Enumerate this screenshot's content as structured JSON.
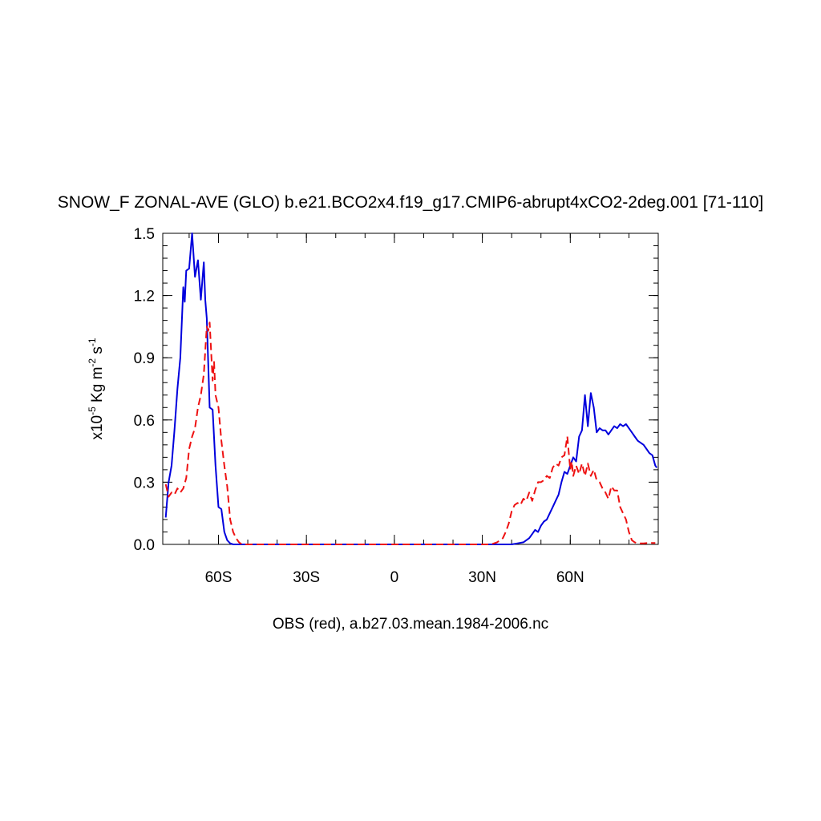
{
  "chart_data": {
    "type": "line",
    "title": "SNOW_F ZONAL-AVE (GLO) b.e21.BCO2x4.f19_g17.CMIP6-abrupt4xCO2-2deg.001 [71-110]",
    "xlabel": "OBS (red), a.b27.03.mean.1984-2006.nc",
    "ylabel": {
      "prefix": "x10",
      "exp1": "-5",
      "mid": " Kg m",
      "exp2": "-2",
      "mid2": " s",
      "exp3": "-1"
    },
    "xlim": [
      -79,
      90
    ],
    "ylim": [
      0,
      1.5
    ],
    "x_ticks": [
      {
        "value": -60,
        "label": "60S"
      },
      {
        "value": -30,
        "label": "30S"
      },
      {
        "value": 0,
        "label": "0"
      },
      {
        "value": 30,
        "label": "30N"
      },
      {
        "value": 60,
        "label": "60N"
      }
    ],
    "y_ticks": [
      {
        "value": 0.0,
        "label": "0.0"
      },
      {
        "value": 0.3,
        "label": "0.3"
      },
      {
        "value": 0.6,
        "label": "0.6"
      },
      {
        "value": 0.9,
        "label": "0.9"
      },
      {
        "value": 1.2,
        "label": "1.2"
      },
      {
        "value": 1.5,
        "label": "1.5"
      }
    ],
    "grid": false,
    "series": [
      {
        "color": "#0000dd",
        "dash": "none",
        "points": [
          [
            -78,
            0.13
          ],
          [
            -77,
            0.3
          ],
          [
            -76,
            0.38
          ],
          [
            -75,
            0.55
          ],
          [
            -74,
            0.75
          ],
          [
            -73,
            0.9
          ],
          [
            -72,
            1.24
          ],
          [
            -71.5,
            1.17
          ],
          [
            -71,
            1.32
          ],
          [
            -70,
            1.33
          ],
          [
            -69,
            1.5
          ],
          [
            -68,
            1.29
          ],
          [
            -67,
            1.37
          ],
          [
            -66,
            1.18
          ],
          [
            -65,
            1.36
          ],
          [
            -64.5,
            1.18
          ],
          [
            -64,
            1.09
          ],
          [
            -63,
            0.66
          ],
          [
            -62,
            0.65
          ],
          [
            -61,
            0.38
          ],
          [
            -60,
            0.18
          ],
          [
            -59,
            0.17
          ],
          [
            -58,
            0.06
          ],
          [
            -57,
            0.02
          ],
          [
            -56,
            0.005
          ],
          [
            -55,
            0.0
          ],
          [
            -20,
            0.0
          ],
          [
            0,
            0.0
          ],
          [
            30,
            0.0
          ],
          [
            40,
            0.0
          ],
          [
            42,
            0.005
          ],
          [
            44,
            0.01
          ],
          [
            46,
            0.03
          ],
          [
            47,
            0.05
          ],
          [
            48,
            0.07
          ],
          [
            49,
            0.06
          ],
          [
            50,
            0.09
          ],
          [
            51,
            0.11
          ],
          [
            52,
            0.12
          ],
          [
            53,
            0.15
          ],
          [
            54,
            0.18
          ],
          [
            55,
            0.21
          ],
          [
            56,
            0.24
          ],
          [
            57,
            0.3
          ],
          [
            58,
            0.35
          ],
          [
            59,
            0.34
          ],
          [
            60,
            0.38
          ],
          [
            61,
            0.42
          ],
          [
            62,
            0.4
          ],
          [
            63,
            0.52
          ],
          [
            64,
            0.55
          ],
          [
            65,
            0.72
          ],
          [
            66,
            0.57
          ],
          [
            67,
            0.73
          ],
          [
            68,
            0.66
          ],
          [
            69,
            0.54
          ],
          [
            70,
            0.56
          ],
          [
            71,
            0.55
          ],
          [
            72,
            0.55
          ],
          [
            73,
            0.53
          ],
          [
            74,
            0.55
          ],
          [
            75,
            0.57
          ],
          [
            76,
            0.56
          ],
          [
            77,
            0.58
          ],
          [
            78,
            0.57
          ],
          [
            79,
            0.58
          ],
          [
            80,
            0.56
          ],
          [
            81,
            0.54
          ],
          [
            82,
            0.52
          ],
          [
            83,
            0.5
          ],
          [
            84,
            0.49
          ],
          [
            85,
            0.48
          ],
          [
            86,
            0.46
          ],
          [
            87,
            0.44
          ],
          [
            88,
            0.43
          ],
          [
            89,
            0.38
          ],
          [
            89.5,
            0.37
          ]
        ]
      },
      {
        "color": "#ee1111",
        "dash": "9,5",
        "points": [
          [
            -78,
            0.29
          ],
          [
            -77,
            0.23
          ],
          [
            -76,
            0.25
          ],
          [
            -75,
            0.24
          ],
          [
            -74,
            0.27
          ],
          [
            -73,
            0.25
          ],
          [
            -72,
            0.27
          ],
          [
            -71,
            0.32
          ],
          [
            -70,
            0.46
          ],
          [
            -69,
            0.52
          ],
          [
            -68,
            0.56
          ],
          [
            -67,
            0.66
          ],
          [
            -66,
            0.72
          ],
          [
            -65,
            0.82
          ],
          [
            -64,
            1.05
          ],
          [
            -63.5,
            1.03
          ],
          [
            -63,
            1.07
          ],
          [
            -62,
            0.79
          ],
          [
            -61.5,
            0.88
          ],
          [
            -61,
            0.72
          ],
          [
            -60,
            0.66
          ],
          [
            -59,
            0.5
          ],
          [
            -58,
            0.38
          ],
          [
            -57,
            0.28
          ],
          [
            -56,
            0.12
          ],
          [
            -55,
            0.06
          ],
          [
            -54,
            0.03
          ],
          [
            -53,
            0.01
          ],
          [
            -52,
            0.0
          ],
          [
            0,
            0.0
          ],
          [
            33,
            0.0
          ],
          [
            35,
            0.01
          ],
          [
            37,
            0.03
          ],
          [
            38,
            0.06
          ],
          [
            39,
            0.1
          ],
          [
            40,
            0.16
          ],
          [
            41,
            0.19
          ],
          [
            42,
            0.2
          ],
          [
            43,
            0.19
          ],
          [
            44,
            0.22
          ],
          [
            45,
            0.21
          ],
          [
            46,
            0.25
          ],
          [
            47,
            0.21
          ],
          [
            48,
            0.26
          ],
          [
            49,
            0.3
          ],
          [
            50,
            0.3
          ],
          [
            51,
            0.31
          ],
          [
            52,
            0.33
          ],
          [
            53,
            0.32
          ],
          [
            54,
            0.37
          ],
          [
            55,
            0.39
          ],
          [
            56,
            0.38
          ],
          [
            57,
            0.42
          ],
          [
            58,
            0.43
          ],
          [
            59,
            0.52
          ],
          [
            60,
            0.36
          ],
          [
            60.5,
            0.4
          ],
          [
            61,
            0.33
          ],
          [
            62,
            0.38
          ],
          [
            63,
            0.34
          ],
          [
            64,
            0.39
          ],
          [
            65,
            0.33
          ],
          [
            66,
            0.39
          ],
          [
            67,
            0.33
          ],
          [
            68,
            0.36
          ],
          [
            69,
            0.31
          ],
          [
            70,
            0.3
          ],
          [
            71,
            0.27
          ],
          [
            72,
            0.25
          ],
          [
            73,
            0.22
          ],
          [
            74,
            0.28
          ],
          [
            75,
            0.26
          ],
          [
            76,
            0.26
          ],
          [
            77,
            0.18
          ],
          [
            78,
            0.15
          ],
          [
            79,
            0.12
          ],
          [
            80,
            0.06
          ],
          [
            81,
            0.02
          ],
          [
            82,
            0.01
          ],
          [
            83,
            0.005
          ],
          [
            84,
            0.005
          ],
          [
            85,
            0.005
          ],
          [
            86,
            0.006
          ],
          [
            87,
            0.006
          ],
          [
            88,
            0.007
          ],
          [
            89,
            0.007
          ]
        ]
      }
    ]
  }
}
